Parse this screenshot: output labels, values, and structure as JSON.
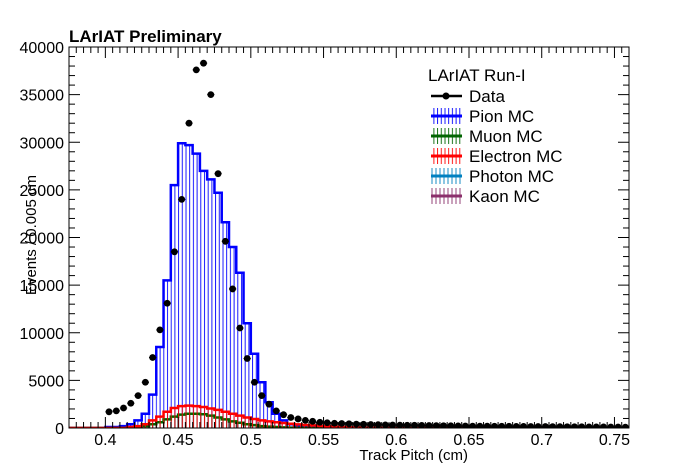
{
  "chart_data": {
    "type": "histogram",
    "title": "LArIAT Preliminary",
    "xlabel": "Track Pitch (cm)",
    "ylabel": "Events / 0.005 cm",
    "xlim": [
      0.375,
      0.76
    ],
    "ylim": [
      0,
      40000
    ],
    "bin_width": 0.005,
    "x_ticks": [
      0.4,
      0.45,
      0.5,
      0.55,
      0.6,
      0.65,
      0.7,
      0.75
    ],
    "x_tick_labels": [
      "0.4",
      "0.45",
      "0.5",
      "0.55",
      "0.6",
      "0.65",
      "0.7",
      "0.75"
    ],
    "y_ticks": [
      0,
      5000,
      10000,
      15000,
      20000,
      25000,
      30000,
      35000,
      40000
    ],
    "y_tick_labels": [
      "0",
      "5000",
      "10000",
      "15000",
      "20000",
      "25000",
      "30000",
      "35000",
      "40000"
    ],
    "legend": {
      "header": "LArIAT Run-I",
      "placement": "top-right",
      "entries": [
        {
          "label": "Data",
          "color": "#000000",
          "style": "marker"
        },
        {
          "label": "Pion MC",
          "color": "#0000ff",
          "style": "hatch"
        },
        {
          "label": "Muon MC",
          "color": "#006400",
          "style": "hatch"
        },
        {
          "label": "Electron MC",
          "color": "#ff0000",
          "style": "hatch"
        },
        {
          "label": "Photon MC",
          "color": "#0080c0",
          "style": "hatch"
        },
        {
          "label": "Kaon MC",
          "color": "#8b2f6b",
          "style": "hatch"
        }
      ]
    },
    "mc_bin_starts": [
      0.375,
      0.38,
      0.385,
      0.39,
      0.395,
      0.4,
      0.405,
      0.41,
      0.415,
      0.42,
      0.425,
      0.43,
      0.435,
      0.44,
      0.445,
      0.45,
      0.455,
      0.46,
      0.465,
      0.47,
      0.475,
      0.48,
      0.485,
      0.49,
      0.495,
      0.5,
      0.505,
      0.51,
      0.515,
      0.52,
      0.525,
      0.53,
      0.535,
      0.54,
      0.545,
      0.55,
      0.555,
      0.56,
      0.565,
      0.57,
      0.575,
      0.58,
      0.585,
      0.59,
      0.595,
      0.6
    ],
    "series": [
      {
        "name": "Pion MC",
        "color": "#0000ff",
        "values": [
          0,
          0,
          0,
          0,
          0,
          100,
          100,
          200,
          400,
          800,
          1500,
          3500,
          8500,
          15500,
          25500,
          29900,
          29700,
          28800,
          27000,
          26100,
          24700,
          21600,
          19000,
          16300,
          11000,
          7800,
          4800,
          2700,
          1500,
          800,
          400,
          200,
          100,
          50,
          0,
          0,
          0,
          0,
          0,
          0,
          0,
          0,
          0,
          0,
          0,
          0
        ]
      },
      {
        "name": "Muon MC",
        "color": "#006400",
        "values": [
          0,
          0,
          0,
          0,
          0,
          0,
          0,
          0,
          0,
          100,
          200,
          400,
          600,
          900,
          1200,
          1400,
          1500,
          1500,
          1450,
          1300,
          1100,
          900,
          700,
          550,
          400,
          300,
          200,
          150,
          100,
          60,
          40,
          20,
          10,
          0,
          0,
          0,
          0,
          0,
          0,
          0,
          0,
          0,
          0,
          0,
          0,
          0
        ]
      },
      {
        "name": "Electron MC",
        "color": "#ff0000",
        "values": [
          0,
          0,
          0,
          0,
          0,
          0,
          0,
          0,
          100,
          200,
          400,
          800,
          1200,
          1700,
          2100,
          2300,
          2350,
          2300,
          2200,
          2050,
          1900,
          1700,
          1500,
          1300,
          1100,
          950,
          800,
          700,
          600,
          520,
          450,
          380,
          320,
          270,
          220,
          180,
          140,
          110,
          80,
          60,
          40,
          30,
          20,
          10,
          0,
          0
        ]
      },
      {
        "name": "Photon MC",
        "color": "#0080c0",
        "values": []
      },
      {
        "name": "Kaon MC",
        "color": "#8b2f6b",
        "values": []
      }
    ],
    "data_points": {
      "name": "Data",
      "x": [
        0.4025,
        0.4075,
        0.4125,
        0.4175,
        0.4225,
        0.4275,
        0.4325,
        0.4375,
        0.4425,
        0.4475,
        0.4525,
        0.4575,
        0.4625,
        0.4675,
        0.4725,
        0.4775,
        0.4825,
        0.4875,
        0.4925,
        0.4975,
        0.5025,
        0.5075,
        0.5125,
        0.5175,
        0.5225,
        0.5275,
        0.5325,
        0.5375,
        0.5425,
        0.5475,
        0.5525,
        0.5575,
        0.5625,
        0.5675,
        0.5725,
        0.5775,
        0.5825,
        0.5875,
        0.5925,
        0.5975,
        0.6025,
        0.6075,
        0.6125,
        0.6175,
        0.6225,
        0.6275,
        0.6325,
        0.6375,
        0.6425,
        0.6475,
        0.6525,
        0.6575,
        0.6625,
        0.6675,
        0.6725,
        0.6775,
        0.6825,
        0.6875,
        0.6925,
        0.6975,
        0.7025,
        0.7075,
        0.7125,
        0.7175,
        0.7225,
        0.7275,
        0.7325,
        0.7375,
        0.7425,
        0.7475,
        0.7525,
        0.7575
      ],
      "y": [
        1700,
        1800,
        2100,
        2600,
        3400,
        4800,
        7400,
        10300,
        13100,
        18500,
        24000,
        32000,
        37600,
        38300,
        35000,
        26700,
        19600,
        14600,
        10500,
        7300,
        4800,
        3400,
        2500,
        1800,
        1400,
        1100,
        950,
        800,
        700,
        600,
        550,
        500,
        470,
        440,
        410,
        390,
        370,
        350,
        330,
        310,
        300,
        290,
        280,
        270,
        260,
        250,
        240,
        230,
        220,
        210,
        200,
        195,
        190,
        185,
        180,
        175,
        170,
        165,
        160,
        155,
        150,
        145,
        140,
        135,
        130,
        125,
        120,
        115,
        110,
        105,
        100,
        95
      ]
    }
  }
}
